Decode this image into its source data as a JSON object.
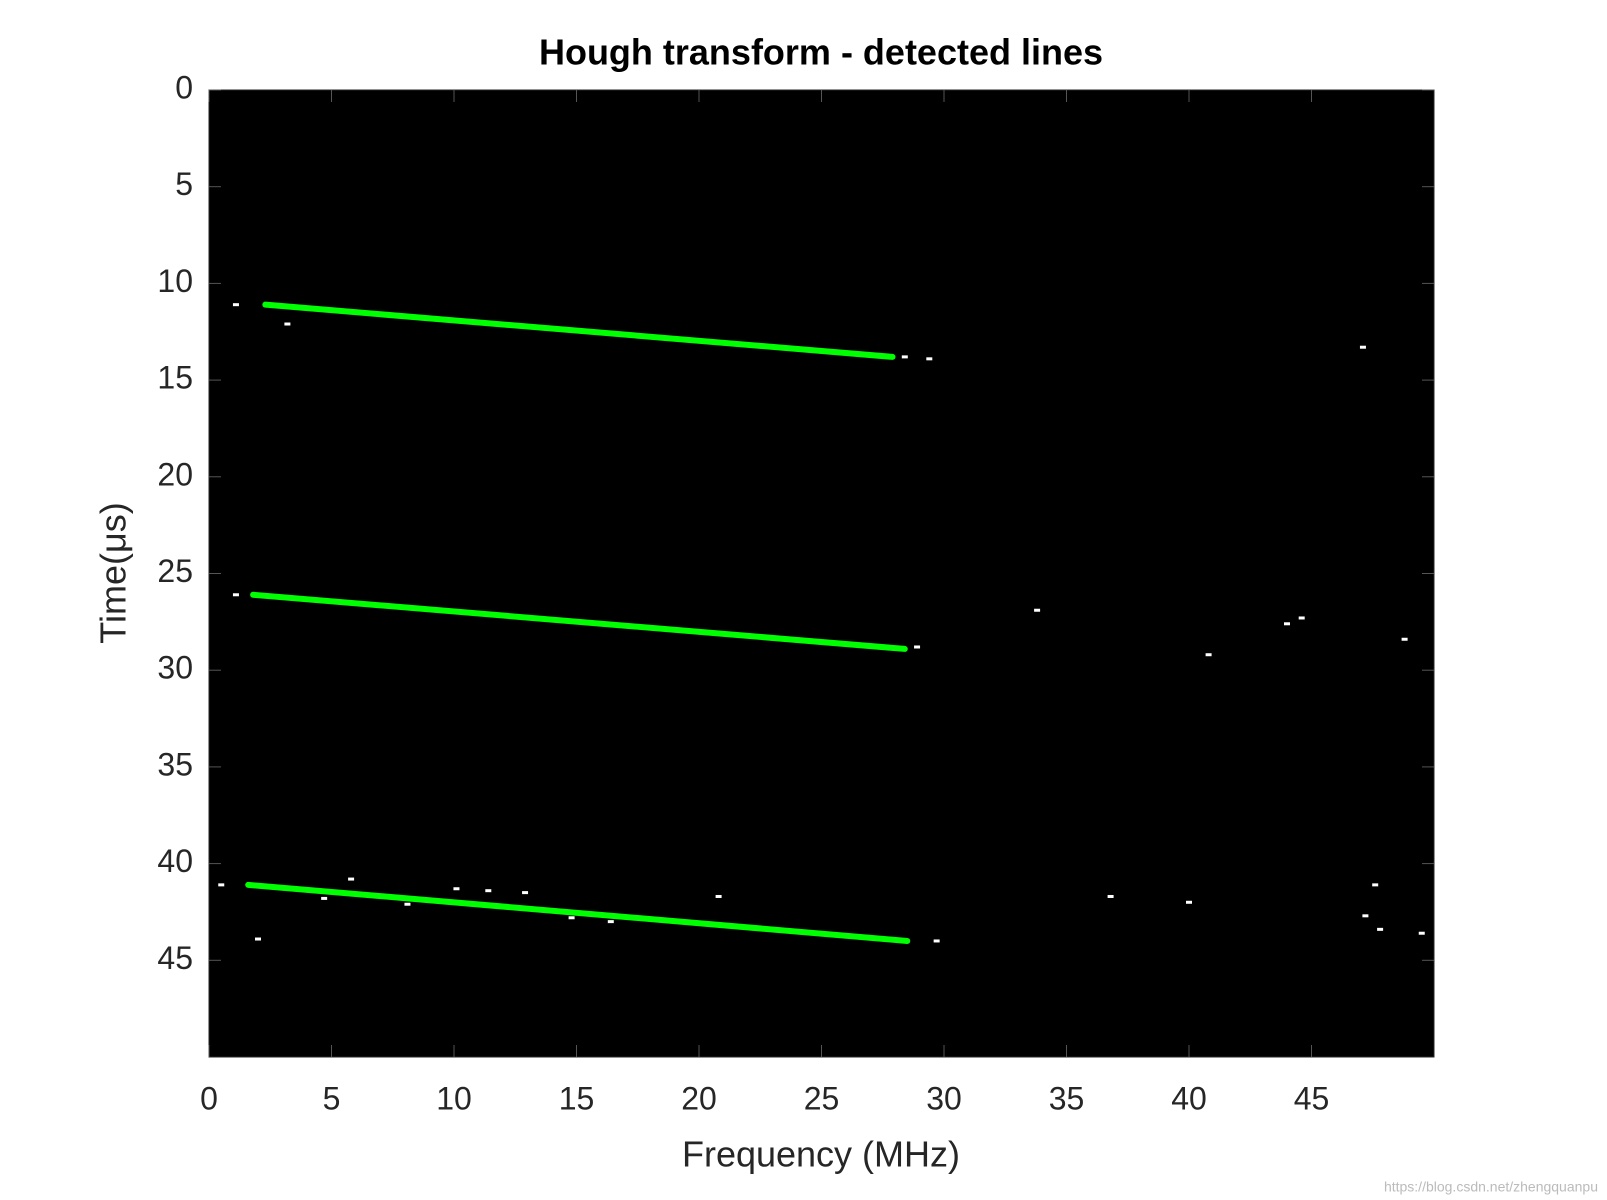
{
  "chart_data": {
    "type": "line",
    "title": "Hough transform - detected lines",
    "xlabel": "Frequency (MHz)",
    "ylabel": "Time(μs)",
    "watermark": "https://blog.csdn.net/zhengquanpu",
    "background": "#000000",
    "xlim": [
      0,
      50
    ],
    "ylim": [
      0,
      50
    ],
    "y_reversed": true,
    "xticks": [
      0,
      5,
      10,
      15,
      20,
      25,
      30,
      35,
      40,
      45
    ],
    "yticks": [
      0,
      5,
      10,
      15,
      20,
      25,
      30,
      35,
      40,
      45
    ],
    "grid": false,
    "series": [
      {
        "color": "#00ff00",
        "x": [
          2.3,
          27.9
        ],
        "values": [
          11.1,
          13.8
        ]
      },
      {
        "color": "#00ff00",
        "x": [
          1.8,
          28.4
        ],
        "values": [
          26.1,
          28.9
        ]
      },
      {
        "color": "#00ff00",
        "x": [
          1.6,
          28.5
        ],
        "values": [
          41.1,
          44.0
        ]
      }
    ],
    "points": {
      "color": "#ffffff",
      "x": [
        3.2,
        29.4,
        47.1,
        33.8,
        40.8,
        44,
        44.6,
        48.8,
        0.5,
        2,
        5.8,
        4.7,
        10.1,
        11.4,
        12.9,
        20.8,
        36.8,
        40,
        47.6,
        47.2,
        47.8,
        49.5,
        29.7,
        14.8,
        16.4,
        1.1,
        28.4,
        1.1,
        28.9,
        8.1
      ],
      "values": [
        12.1,
        13.9,
        13.3,
        26.9,
        29.2,
        27.6,
        27.3,
        28.4,
        41.1,
        43.9,
        40.8,
        41.8,
        41.3,
        41.4,
        41.5,
        41.7,
        41.7,
        42,
        41.1,
        42.7,
        43.4,
        43.6,
        44,
        42.8,
        43,
        11.1,
        13.8,
        26.1,
        28.8,
        42.1
      ]
    }
  }
}
